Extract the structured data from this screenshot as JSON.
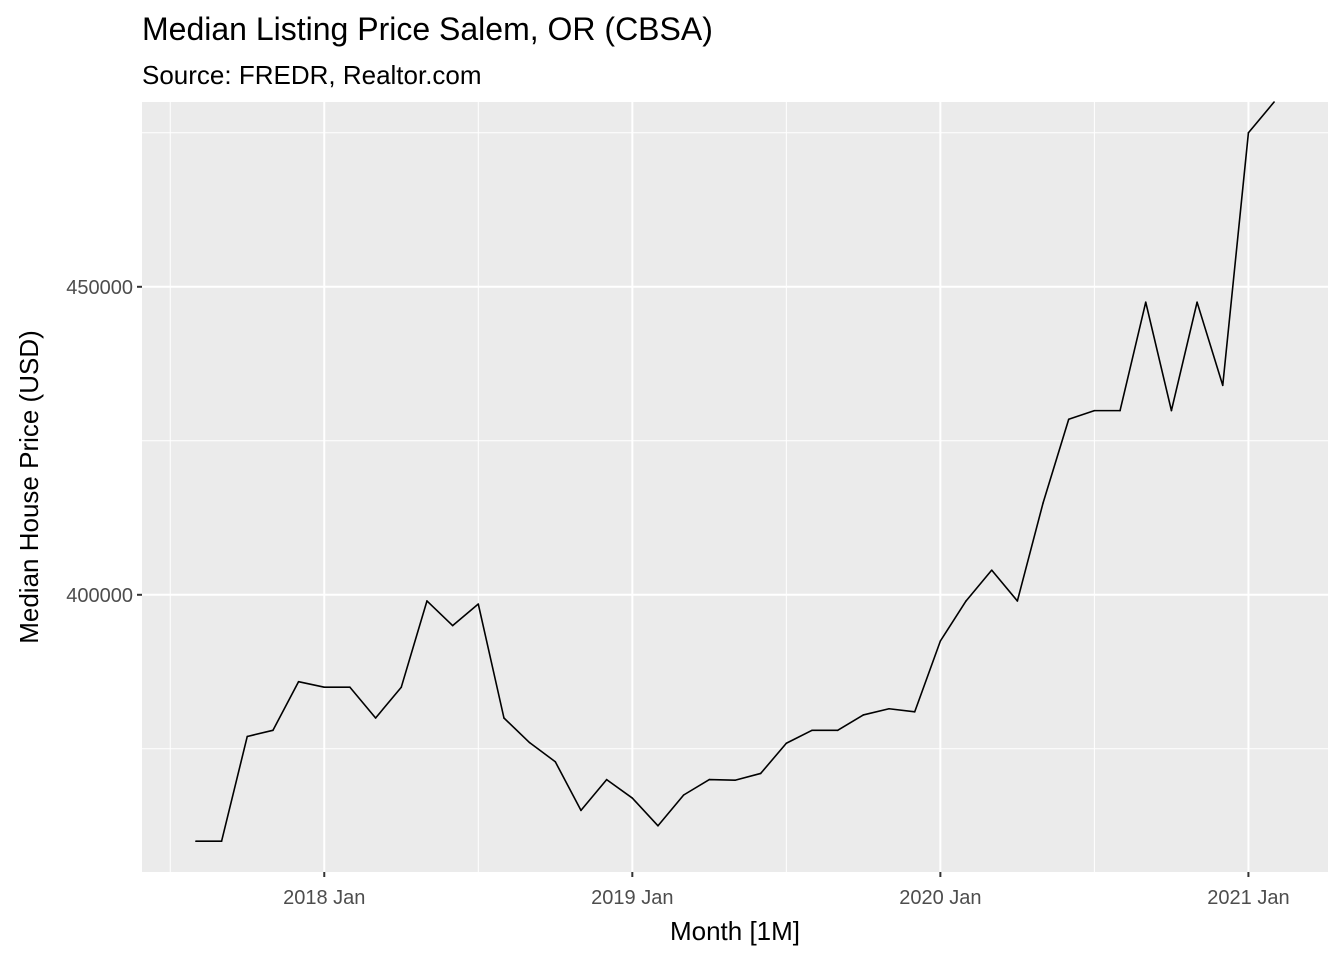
{
  "chart_data": {
    "type": "line",
    "title": "Median Listing Price Salem, OR (CBSA)",
    "subtitle": "Source: FREDR, Realtor.com",
    "xlabel": "Month [1M]",
    "ylabel": "Median House Price (USD)",
    "x_ticks": [
      "2018 Jan",
      "2019 Jan",
      "2020 Jan",
      "2021 Jan"
    ],
    "y_ticks": [
      400000,
      450000
    ],
    "ylim": [
      355000,
      480000
    ],
    "grid": true,
    "legend": "none",
    "series": [
      {
        "name": "Median Listing Price",
        "x": [
          "2017-08",
          "2017-09",
          "2017-10",
          "2017-11",
          "2017-12",
          "2018-01",
          "2018-02",
          "2018-03",
          "2018-04",
          "2018-05",
          "2018-06",
          "2018-07",
          "2018-08",
          "2018-09",
          "2018-10",
          "2018-11",
          "2018-12",
          "2019-01",
          "2019-02",
          "2019-03",
          "2019-04",
          "2019-05",
          "2019-06",
          "2019-07",
          "2019-08",
          "2019-09",
          "2019-10",
          "2019-11",
          "2019-12",
          "2020-01",
          "2020-02",
          "2020-03",
          "2020-04",
          "2020-05",
          "2020-06",
          "2020-07",
          "2020-08",
          "2020-09",
          "2020-10",
          "2020-11",
          "2020-12",
          "2021-01",
          "2021-02"
        ],
        "values": [
          360000,
          360000,
          377000,
          378000,
          385900,
          385000,
          385000,
          380000,
          385000,
          399000,
          395000,
          398500,
          380000,
          376000,
          372900,
          365000,
          370000,
          367000,
          362500,
          367500,
          370000,
          369900,
          371000,
          375900,
          378000,
          378000,
          380500,
          381500,
          381000,
          392500,
          399000,
          404000,
          399000,
          414900,
          428500,
          429900,
          429900,
          447500,
          429900,
          447500,
          434000,
          475000,
          480000
        ]
      }
    ]
  }
}
